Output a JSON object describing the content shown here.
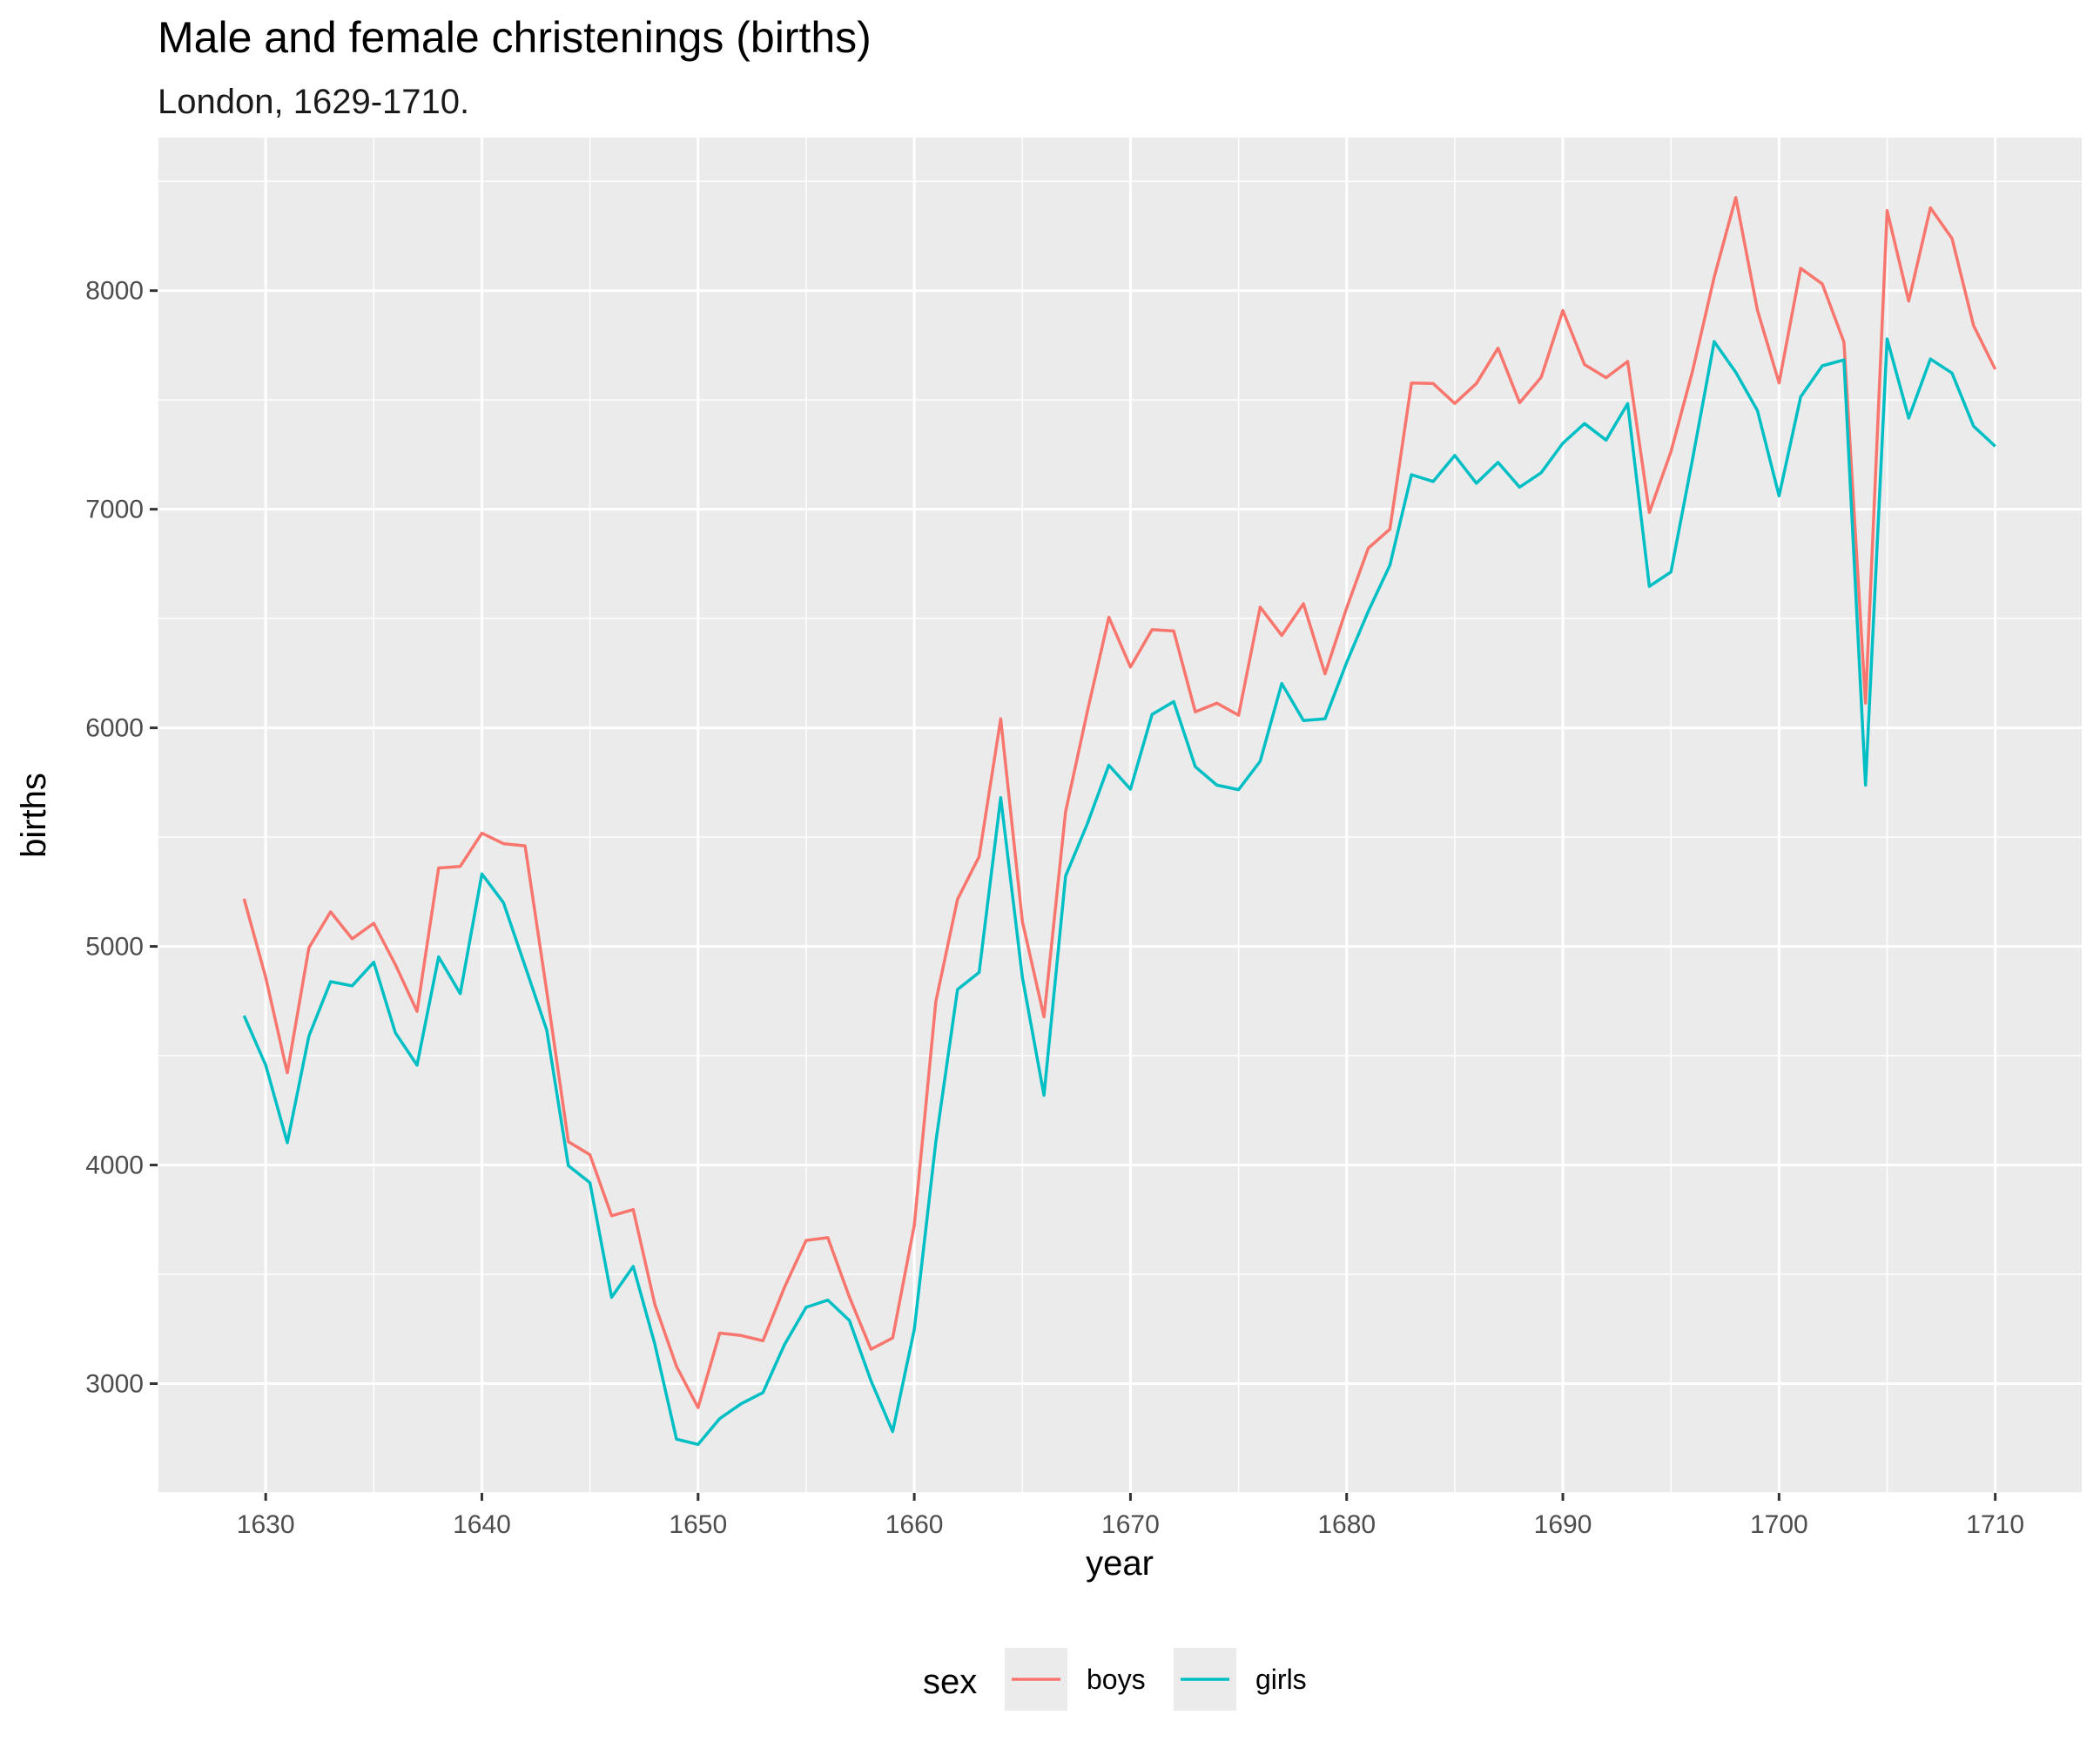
{
  "chart_data": {
    "type": "line",
    "title": "Male and female christenings (births)",
    "subtitle": "London, 1629-1710.",
    "xlabel": "year",
    "ylabel": "births",
    "xlim": [
      1625,
      1714
    ],
    "ylim": [
      2500,
      8700
    ],
    "x_ticks": [
      1630,
      1640,
      1650,
      1660,
      1670,
      1680,
      1690,
      1700,
      1710
    ],
    "y_ticks": [
      3000,
      4000,
      5000,
      6000,
      7000,
      8000
    ],
    "grid": true,
    "legend": {
      "title": "sex",
      "position": "bottom"
    },
    "x": [
      1629,
      1630,
      1631,
      1632,
      1633,
      1634,
      1635,
      1636,
      1637,
      1638,
      1639,
      1640,
      1641,
      1642,
      1643,
      1644,
      1645,
      1646,
      1647,
      1648,
      1649,
      1650,
      1651,
      1652,
      1653,
      1654,
      1655,
      1656,
      1657,
      1658,
      1659,
      1660,
      1661,
      1662,
      1663,
      1664,
      1665,
      1666,
      1667,
      1668,
      1669,
      1670,
      1671,
      1672,
      1673,
      1674,
      1675,
      1676,
      1677,
      1678,
      1679,
      1680,
      1681,
      1682,
      1683,
      1684,
      1685,
      1686,
      1687,
      1688,
      1689,
      1690,
      1691,
      1692,
      1693,
      1694,
      1695,
      1696,
      1697,
      1698,
      1699,
      1700,
      1701,
      1702,
      1703,
      1704,
      1705,
      1706,
      1707,
      1708,
      1709,
      1710
    ],
    "series": [
      {
        "name": "boys",
        "color": "#F8766D",
        "values": [
          5218,
          4858,
          4422,
          4994,
          5158,
          5035,
          5106,
          4917,
          4703,
          5359,
          5366,
          5518,
          5470,
          5460,
          4793,
          4107,
          4047,
          3768,
          3796,
          3363,
          3079,
          2890,
          3231,
          3220,
          3196,
          3441,
          3655,
          3668,
          3396,
          3157,
          3209,
          3724,
          4748,
          5216,
          5411,
          6041,
          5114,
          4678,
          5616,
          6073,
          6506,
          6278,
          6449,
          6443,
          6073,
          6113,
          6058,
          6552,
          6423,
          6568,
          6247,
          6548,
          6822,
          6909,
          7577,
          7575,
          7484,
          7575,
          7737,
          7487,
          7604,
          7909,
          7662,
          7602,
          7676,
          6985,
          7263,
          7632,
          8062,
          8426,
          7911,
          7578,
          8102,
          8031,
          7765,
          6113,
          8366,
          7952,
          8379,
          8239,
          7840,
          7640
        ]
      },
      {
        "name": "girls",
        "color": "#00BFC4",
        "values": [
          4683,
          4457,
          4102,
          4590,
          4839,
          4820,
          4928,
          4605,
          4457,
          4952,
          4784,
          5332,
          5200,
          4910,
          4617,
          3997,
          3919,
          3395,
          3536,
          3181,
          2746,
          2722,
          2840,
          2908,
          2959,
          3179,
          3349,
          3382,
          3289,
          3013,
          2781,
          3247,
          4107,
          4803,
          4881,
          5681,
          4858,
          4319,
          5322,
          5560,
          5829,
          5719,
          6061,
          6120,
          5822,
          5738,
          5717,
          5847,
          6203,
          6033,
          6041,
          6299,
          6533,
          6744,
          7158,
          7127,
          7246,
          7119,
          7214,
          7101,
          7167,
          7302,
          7392,
          7316,
          7483,
          6647,
          6713,
          7229,
          7767,
          7626,
          7452,
          7061,
          7514,
          7656,
          7683,
          5738,
          7779,
          7417,
          7687,
          7623,
          7380,
          7288
        ]
      }
    ]
  }
}
